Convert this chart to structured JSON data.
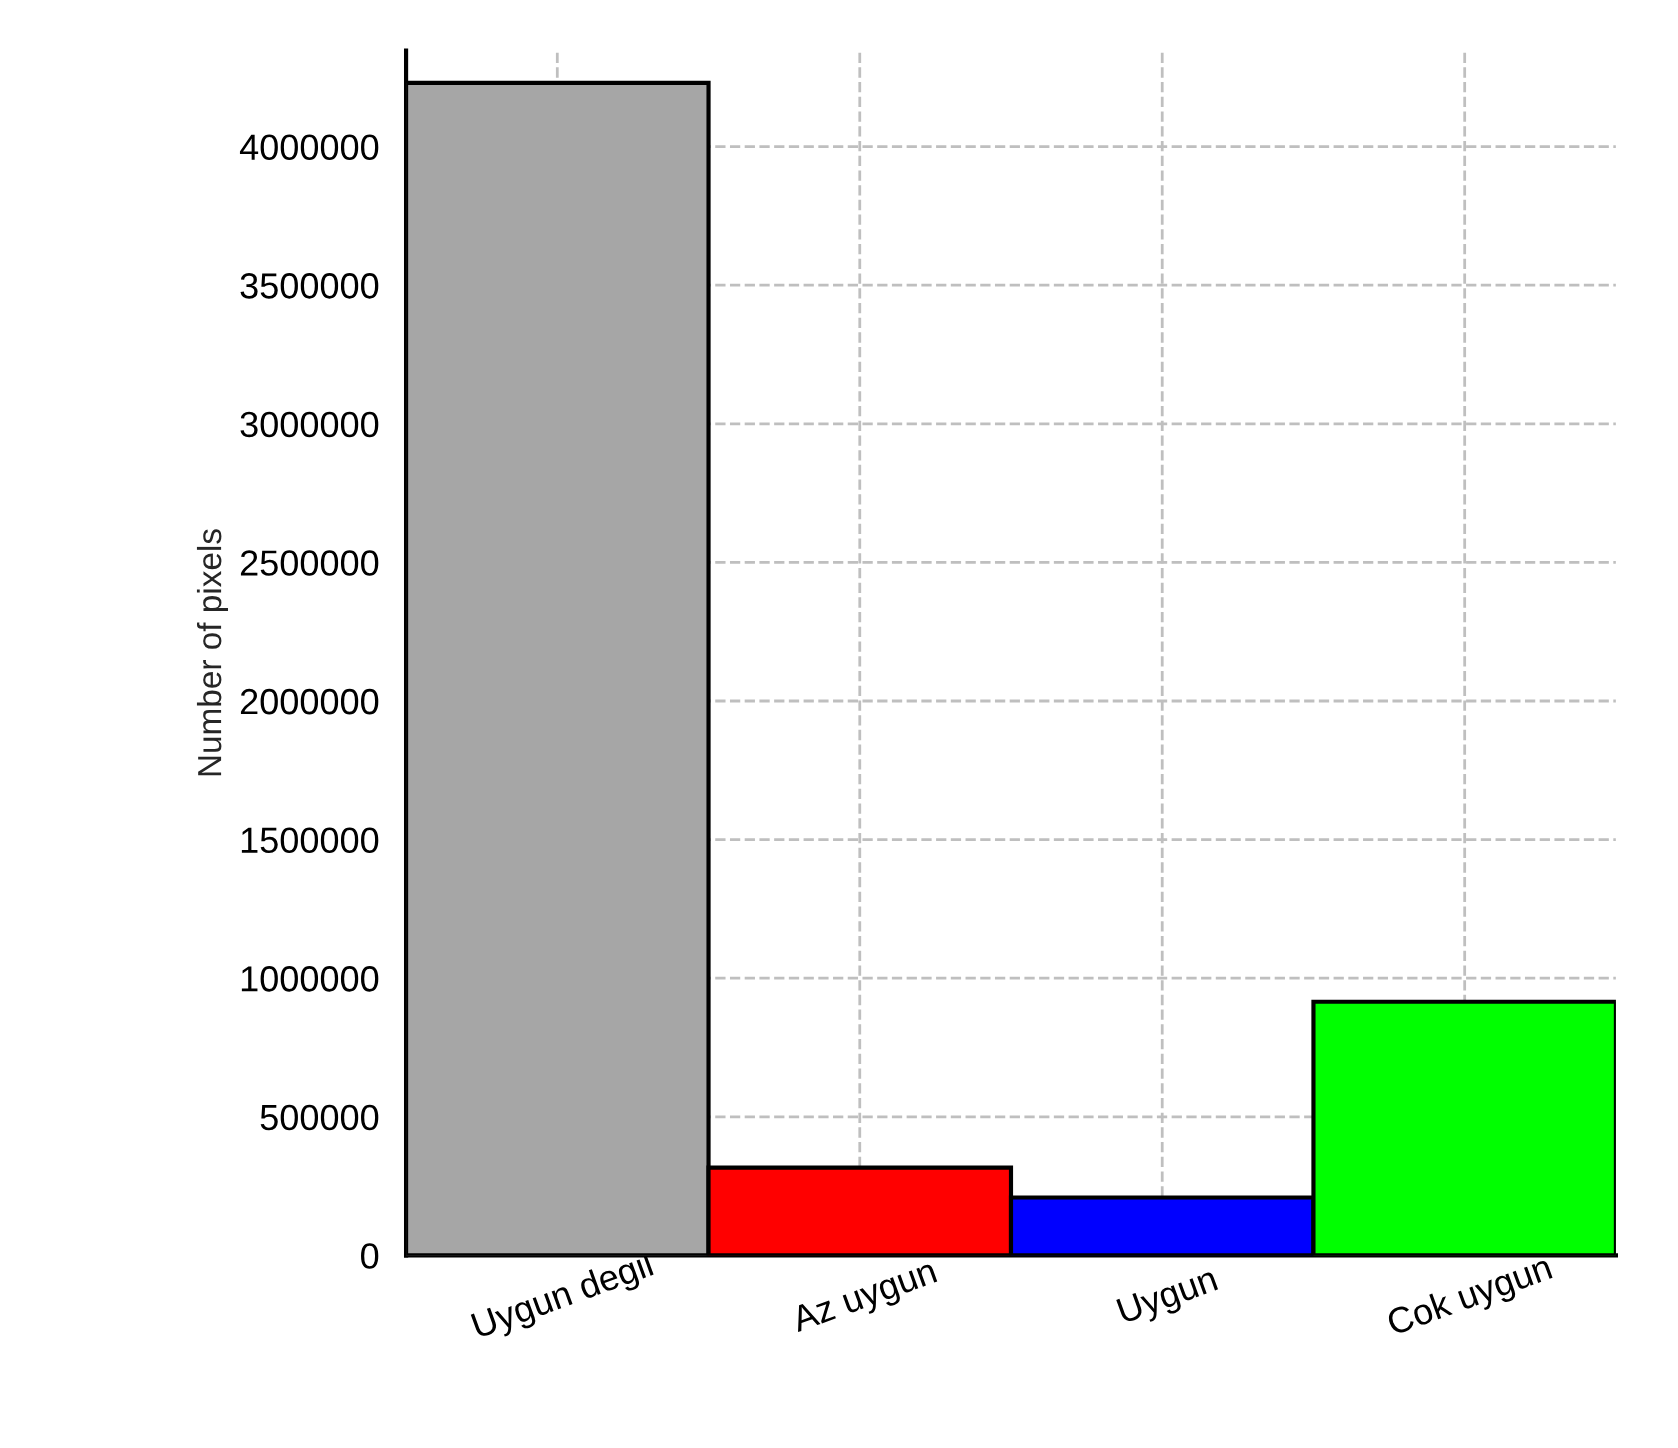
{
  "chart_data": {
    "type": "bar",
    "ylabel": "Number of pixels",
    "categories": [
      "Uygun degil",
      "Az uygun",
      "Uygun",
      "Cok uygun"
    ],
    "values": [
      4230000,
      317000,
      209000,
      915000
    ],
    "colors": [
      "#a6a6a6",
      "#ff0000",
      "#0000ff",
      "#00ff00"
    ],
    "ylim": [
      0,
      4346000
    ],
    "yticks": [
      0,
      500000,
      1000000,
      1500000,
      2000000,
      2500000,
      3000000,
      3500000,
      4000000
    ],
    "grid": true
  }
}
